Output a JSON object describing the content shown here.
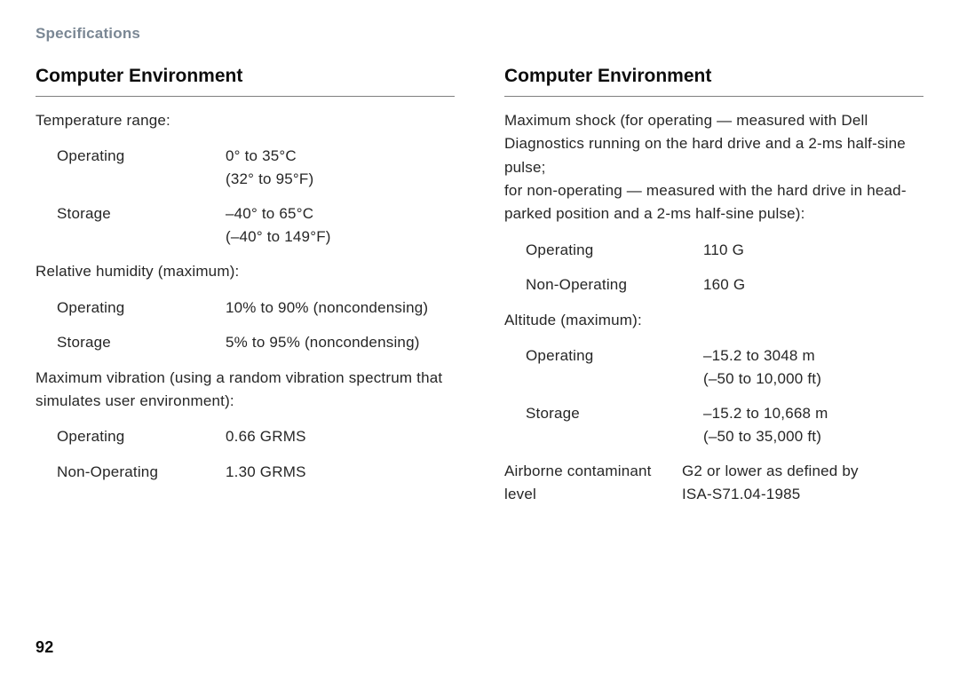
{
  "breadcrumb": "Specifications",
  "page_number": "92",
  "left": {
    "title": "Computer Environment",
    "temp_label": "Temperature range:",
    "temp_rows": [
      {
        "label": "Operating",
        "value": "0° to 35°C\n(32° to 95°F)"
      },
      {
        "label": "Storage",
        "value": "–40° to 65°C\n(–40° to 149°F)"
      }
    ],
    "humidity_label": "Relative humidity (maximum):",
    "humidity_rows": [
      {
        "label": "Operating",
        "value": "10% to 90% (noncondensing)"
      },
      {
        "label": "Storage",
        "value": "5% to 95% (noncondensing)"
      }
    ],
    "vibration_label": "Maximum vibration (using a random vibration spectrum that simulates user environment):",
    "vibration_rows": [
      {
        "label": "Operating",
        "value": "0.66 GRMS"
      },
      {
        "label": "Non-Operating",
        "value": "1.30 GRMS"
      }
    ]
  },
  "right": {
    "title": "Computer Environment",
    "shock_label": "Maximum shock (for operating — measured with Dell Diagnostics running on the hard drive and a 2-ms half-sine pulse;\nfor non-operating — measured with the hard drive in head-parked position and a 2-ms half-sine pulse):",
    "shock_rows": [
      {
        "label": "Operating",
        "value": "110 G"
      },
      {
        "label": "Non-Operating",
        "value": "160 G"
      }
    ],
    "altitude_label": "Altitude (maximum):",
    "altitude_rows": [
      {
        "label": "Operating",
        "value": "–15.2 to 3048 m\n(–50 to 10,000 ft)"
      },
      {
        "label": "Storage",
        "value": "–15.2 to 10,668 m\n(–50 to 35,000 ft)"
      }
    ],
    "contaminant": {
      "label": "Airborne contaminant level",
      "value": "G2 or lower as defined by\nISA-S71.04-1985"
    }
  }
}
